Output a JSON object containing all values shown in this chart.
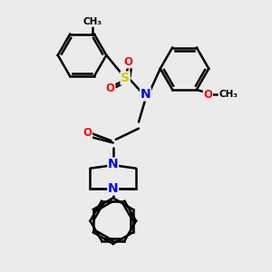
{
  "bg_color": "#ebebeb",
  "bond_color": "#000000",
  "N_color": "#0000ff",
  "O_color": "#ff0000",
  "S_color": "#cccc00",
  "lw": 1.8,
  "figsize": [
    3.0,
    3.0
  ],
  "dpi": 100,
  "xlim": [
    0,
    10
  ],
  "ylim": [
    0,
    10
  ]
}
